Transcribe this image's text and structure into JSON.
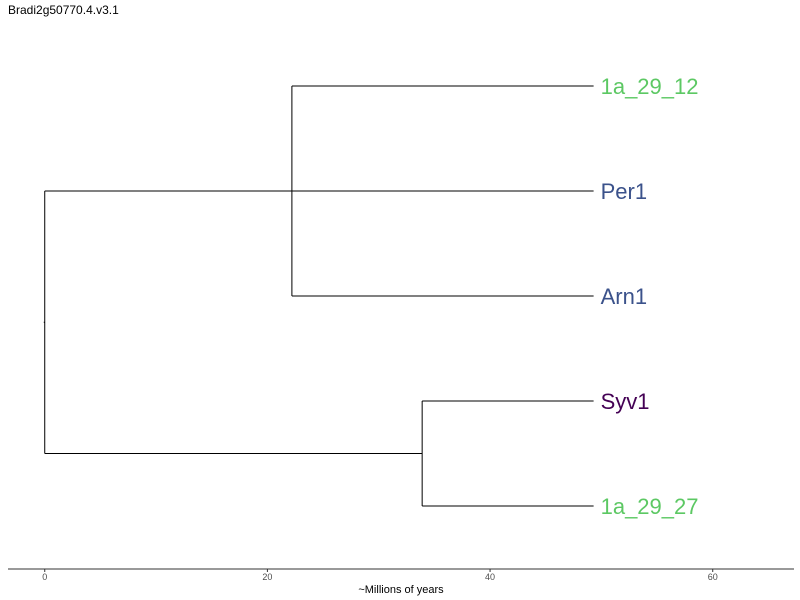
{
  "chart_data": {
    "type": "dendrogram",
    "title": "Bradi2g50770.4.v3.1",
    "xlabel": "~Millions of years",
    "xlim": [
      -3.3,
      67.3
    ],
    "xticks": [
      0,
      20,
      40,
      60
    ],
    "xtick_labels": [
      "0",
      "20",
      "40",
      "60"
    ],
    "grid": false,
    "leaves": [
      {
        "label": "1a_29_12",
        "color": "#5cc863",
        "depth": 49.3
      },
      {
        "label": "Per1",
        "color": "#3b528b",
        "depth": 49.3
      },
      {
        "label": "Arn1",
        "color": "#3b528b",
        "depth": 49.3
      },
      {
        "label": "Syv1",
        "color": "#440154",
        "depth": 49.3
      },
      {
        "label": "1a_29_27",
        "color": "#5cc863",
        "depth": 49.3
      }
    ],
    "clades": [
      {
        "height": 0,
        "children": [
          "Per1",
          "clade_B"
        ]
      },
      {
        "id": "clade_A",
        "height": 22.2,
        "children": [
          "1a_29_12",
          "Arn1"
        ]
      },
      {
        "id": "clade_B",
        "height": 33.9,
        "children": [
          "Syv1",
          "1a_29_27"
        ]
      }
    ],
    "colors": {
      "line": "#000000",
      "axis": "#333333"
    }
  }
}
